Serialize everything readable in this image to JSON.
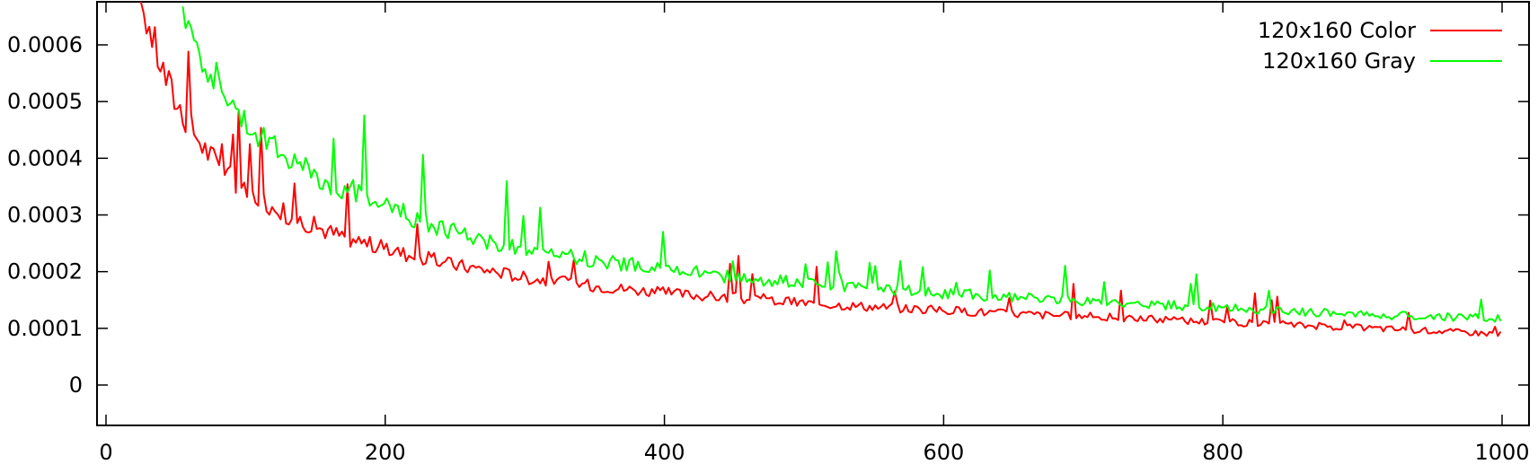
{
  "chart_data": {
    "type": "line",
    "title": "",
    "xlabel": "",
    "ylabel": "",
    "xlim": [
      -5,
      1010
    ],
    "ylim": [
      -7e-05,
      0.00068
    ],
    "x_ticks": [
      0,
      200,
      400,
      600,
      800,
      1000
    ],
    "x_tick_labels": [
      "0",
      "200",
      "400",
      "600",
      "800",
      "1000"
    ],
    "y_ticks": [
      0,
      0.0001,
      0.0002,
      0.0003,
      0.0004,
      0.0005,
      0.0006
    ],
    "y_tick_labels": [
      "0",
      "0.0001",
      "0.0002",
      "0.0003",
      "0.0004",
      "0.0005",
      "0.0006"
    ],
    "grid": false,
    "legend_position": "top-right",
    "series": [
      {
        "name": "120x160 Color",
        "color": "#ff0000",
        "x": [
          25,
          30,
          35,
          40,
          45,
          50,
          60,
          70,
          80,
          90,
          100,
          110,
          120,
          130,
          140,
          150,
          160,
          180,
          200,
          220,
          250,
          280,
          300,
          350,
          400,
          450,
          500,
          550,
          600,
          650,
          700,
          750,
          800,
          850,
          900,
          950,
          1000
        ],
        "values": [
          0.00068,
          0.00064,
          0.0006,
          0.00056,
          0.00053,
          0.0005,
          0.00046,
          0.00042,
          0.00039,
          0.000365,
          0.000345,
          0.00033,
          0.000315,
          0.0003,
          0.00029,
          0.00028,
          0.00027,
          0.000255,
          0.00024,
          0.000228,
          0.000212,
          0.0002,
          0.00019,
          0.000175,
          0.000163,
          0.000153,
          0.000145,
          0.000138,
          0.000132,
          0.000126,
          0.000121,
          0.000116,
          0.000111,
          0.000106,
          0.000101,
          9.6e-05,
          9e-05
        ]
      },
      {
        "name": "120x160 Gray",
        "color": "#00ff00",
        "x": [
          55,
          60,
          70,
          80,
          90,
          100,
          110,
          120,
          130,
          140,
          150,
          160,
          180,
          200,
          220,
          250,
          280,
          300,
          350,
          400,
          450,
          500,
          550,
          600,
          650,
          700,
          750,
          800,
          850,
          900,
          950,
          1000
        ],
        "values": [
          0.00068,
          0.00063,
          0.00058,
          0.00054,
          0.0005,
          0.00047,
          0.00044,
          0.00042,
          0.0004,
          0.000385,
          0.00037,
          0.000355,
          0.00034,
          0.000315,
          0.000295,
          0.00027,
          0.00025,
          0.00024,
          0.00022,
          0.000205,
          0.00019,
          0.00018,
          0.00017,
          0.000162,
          0.000155,
          0.000148,
          0.000142,
          0.000136,
          0.00013,
          0.000125,
          0.00012,
          0.000118
        ]
      }
    ]
  }
}
